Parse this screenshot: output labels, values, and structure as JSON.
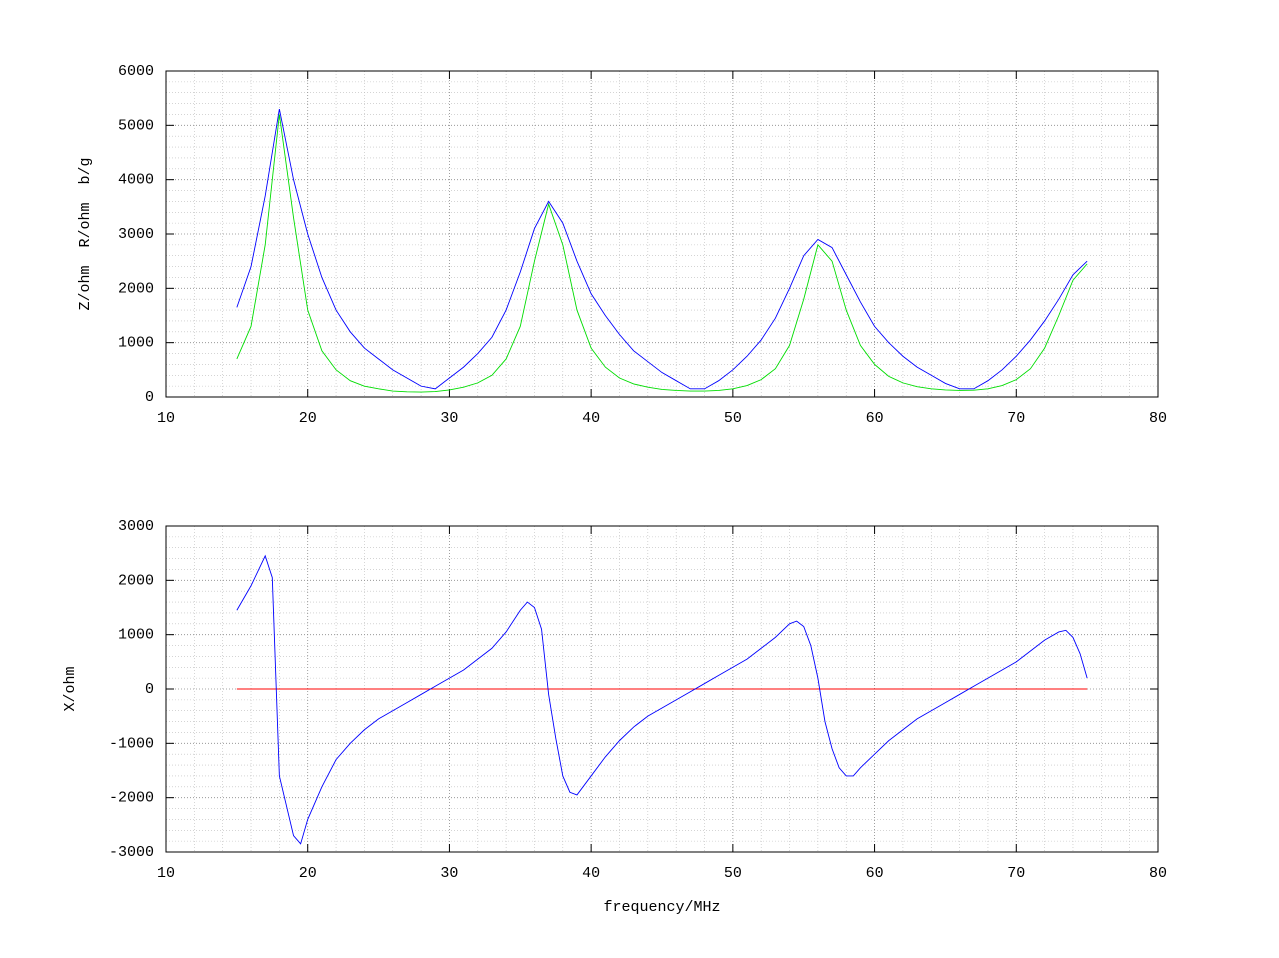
{
  "chart_data": [
    {
      "type": "line",
      "ylabel": "Z/ohm  R/ohm  b/g",
      "xlim": [
        10,
        80
      ],
      "xticks": [
        10,
        20,
        30,
        40,
        50,
        60,
        70,
        80
      ],
      "ylim": [
        0,
        6000
      ],
      "yticks": [
        0,
        1000,
        2000,
        3000,
        4000,
        5000,
        6000
      ],
      "grid": true,
      "minor_grid": 5,
      "x": [
        15,
        16,
        17,
        18,
        19,
        20,
        21,
        22,
        23,
        24,
        25,
        26,
        27,
        28,
        29,
        30,
        31,
        32,
        33,
        34,
        35,
        36,
        37,
        38,
        39,
        40,
        41,
        42,
        43,
        44,
        45,
        46,
        47,
        48,
        49,
        50,
        51,
        52,
        53,
        54,
        55,
        56,
        57,
        58,
        59,
        60,
        61,
        62,
        63,
        64,
        65,
        66,
        67,
        68,
        69,
        70,
        71,
        72,
        73,
        74,
        75
      ],
      "series": [
        {
          "color": "#0000ff",
          "values": [
            1650,
            2400,
            3700,
            5300,
            4000,
            3000,
            2200,
            1600,
            1200,
            900,
            700,
            500,
            350,
            200,
            150,
            350,
            550,
            800,
            1100,
            1600,
            2300,
            3100,
            3600,
            3200,
            2500,
            1900,
            1500,
            1150,
            850,
            650,
            450,
            300,
            150,
            150,
            300,
            500,
            750,
            1050,
            1450,
            2000,
            2600,
            2900,
            2750,
            2250,
            1750,
            1300,
            1000,
            750,
            550,
            400,
            250,
            150,
            150,
            300,
            500,
            750,
            1050,
            1400,
            1800,
            2250,
            2500
          ]
        },
        {
          "color": "#00dd00",
          "values": [
            700,
            1300,
            2800,
            5200,
            3300,
            1600,
            850,
            500,
            300,
            200,
            150,
            110,
            95,
            90,
            100,
            130,
            180,
            260,
            400,
            700,
            1300,
            2500,
            3550,
            2800,
            1600,
            900,
            550,
            350,
            240,
            180,
            140,
            120,
            110,
            110,
            120,
            150,
            210,
            320,
            520,
            950,
            1800,
            2800,
            2500,
            1600,
            950,
            600,
            380,
            260,
            190,
            150,
            130,
            120,
            125,
            150,
            210,
            320,
            520,
            900,
            1500,
            2150,
            2450
          ]
        }
      ]
    },
    {
      "type": "line",
      "ylabel": "X/ohm",
      "xlabel": "frequency/MHz",
      "xlim": [
        10,
        80
      ],
      "xticks": [
        10,
        20,
        30,
        40,
        50,
        60,
        70,
        80
      ],
      "ylim": [
        -3000,
        3000
      ],
      "yticks": [
        -3000,
        -2000,
        -1000,
        0,
        1000,
        2000,
        3000
      ],
      "grid": true,
      "minor_grid": 5,
      "x": [
        15,
        16,
        17,
        17.5,
        18,
        19,
        19.5,
        20,
        21,
        22,
        23,
        24,
        25,
        26,
        27,
        28,
        29,
        30,
        31,
        32,
        33,
        34,
        35,
        35.5,
        36,
        36.5,
        37,
        37.5,
        38,
        38.5,
        39,
        40,
        41,
        42,
        43,
        44,
        45,
        46,
        47,
        48,
        49,
        50,
        51,
        52,
        53,
        54,
        54.5,
        55,
        55.5,
        56,
        56.5,
        57,
        57.5,
        58,
        58.5,
        59,
        60,
        61,
        62,
        63,
        64,
        65,
        66,
        67,
        68,
        69,
        70,
        71,
        72,
        73,
        73.5,
        74,
        74.5,
        75
      ],
      "series": [
        {
          "color": "#0000ff",
          "values": [
            1450,
            1900,
            2450,
            2050,
            -1600,
            -2700,
            -2850,
            -2400,
            -1800,
            -1300,
            -1000,
            -750,
            -550,
            -400,
            -250,
            -100,
            50,
            200,
            350,
            550,
            750,
            1050,
            1450,
            1600,
            1500,
            1100,
            -100,
            -900,
            -1600,
            -1900,
            -1950,
            -1600,
            -1250,
            -950,
            -700,
            -500,
            -350,
            -200,
            -50,
            100,
            250,
            400,
            550,
            750,
            950,
            1200,
            1250,
            1150,
            800,
            200,
            -600,
            -1100,
            -1450,
            -1600,
            -1600,
            -1450,
            -1200,
            -950,
            -750,
            -550,
            -400,
            -250,
            -100,
            50,
            200,
            350,
            500,
            700,
            900,
            1050,
            1080,
            950,
            650,
            200
          ]
        }
      ],
      "zero_line": {
        "color": "#ff0000",
        "x": [
          15,
          75
        ],
        "values": [
          0,
          0
        ]
      }
    }
  ]
}
